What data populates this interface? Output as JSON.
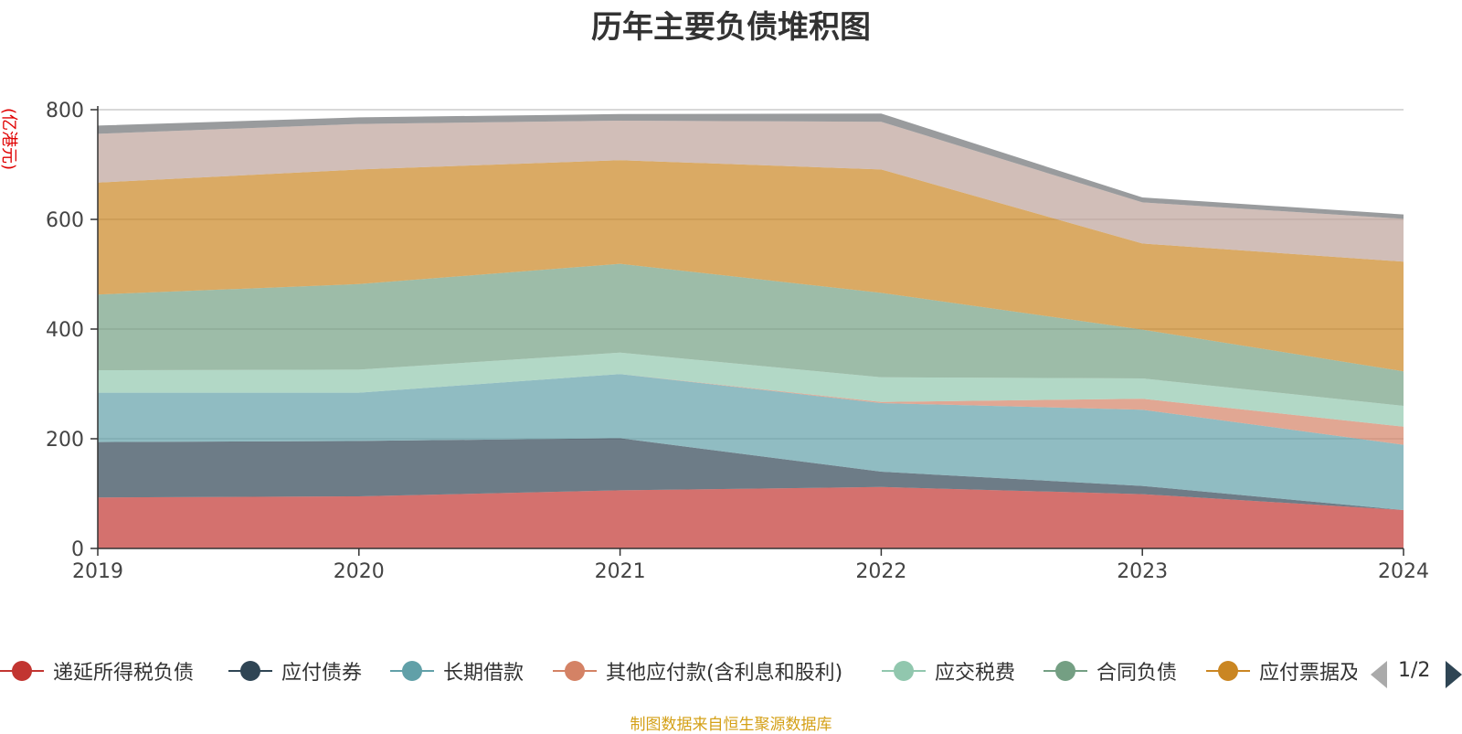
{
  "chart_data": {
    "type": "area",
    "stacked": true,
    "title": "历年主要负债堆积图",
    "unit_label": "(亿港元)",
    "categories": [
      "2019",
      "2020",
      "2021",
      "2022",
      "2023",
      "2024"
    ],
    "ylim": [
      0,
      800
    ],
    "yticks": [
      0,
      200,
      400,
      600,
      800
    ],
    "grid": true,
    "series": [
      {
        "name": "递延所得税负债",
        "color": "#c23531",
        "values": [
          93,
          95,
          106,
          112,
          99,
          70
        ]
      },
      {
        "name": "应付债券",
        "color": "#2f4554",
        "values": [
          101,
          101,
          95,
          28,
          15,
          0
        ]
      },
      {
        "name": "长期借款",
        "color": "#61a0a8",
        "values": [
          90,
          88,
          117,
          125,
          139,
          119
        ]
      },
      {
        "name": "其他应付款(含利息和股利)",
        "color": "#d48265",
        "values": [
          0,
          0,
          0,
          2,
          20,
          33
        ]
      },
      {
        "name": "应交税费",
        "color": "#91c7ae",
        "values": [
          41,
          42,
          39,
          45,
          37,
          38
        ]
      },
      {
        "name": "合同负债",
        "color": "#749f83",
        "values": [
          138,
          156,
          162,
          154,
          89,
          63
        ]
      },
      {
        "name": "应付票据及应付账款",
        "color": "#ca8622",
        "values": [
          204,
          209,
          189,
          225,
          157,
          200
        ]
      },
      {
        "name": "series-8",
        "color": "#bda29a",
        "values": [
          89,
          83,
          72,
          87,
          75,
          78
        ]
      },
      {
        "name": "series-9",
        "color": "#6e7074",
        "values": [
          15,
          12,
          12,
          15,
          9,
          8
        ]
      }
    ]
  },
  "legend": {
    "visible_labels": [
      "递延所得税负债",
      "应付债券",
      "长期借款",
      "其他应付款(含利息和股利)",
      "应交税费",
      "合同负债",
      "应付票据及应付账款"
    ],
    "page_indicator": "1/2"
  },
  "footer": {
    "source_note": "制图数据来自恒生聚源数据库"
  }
}
